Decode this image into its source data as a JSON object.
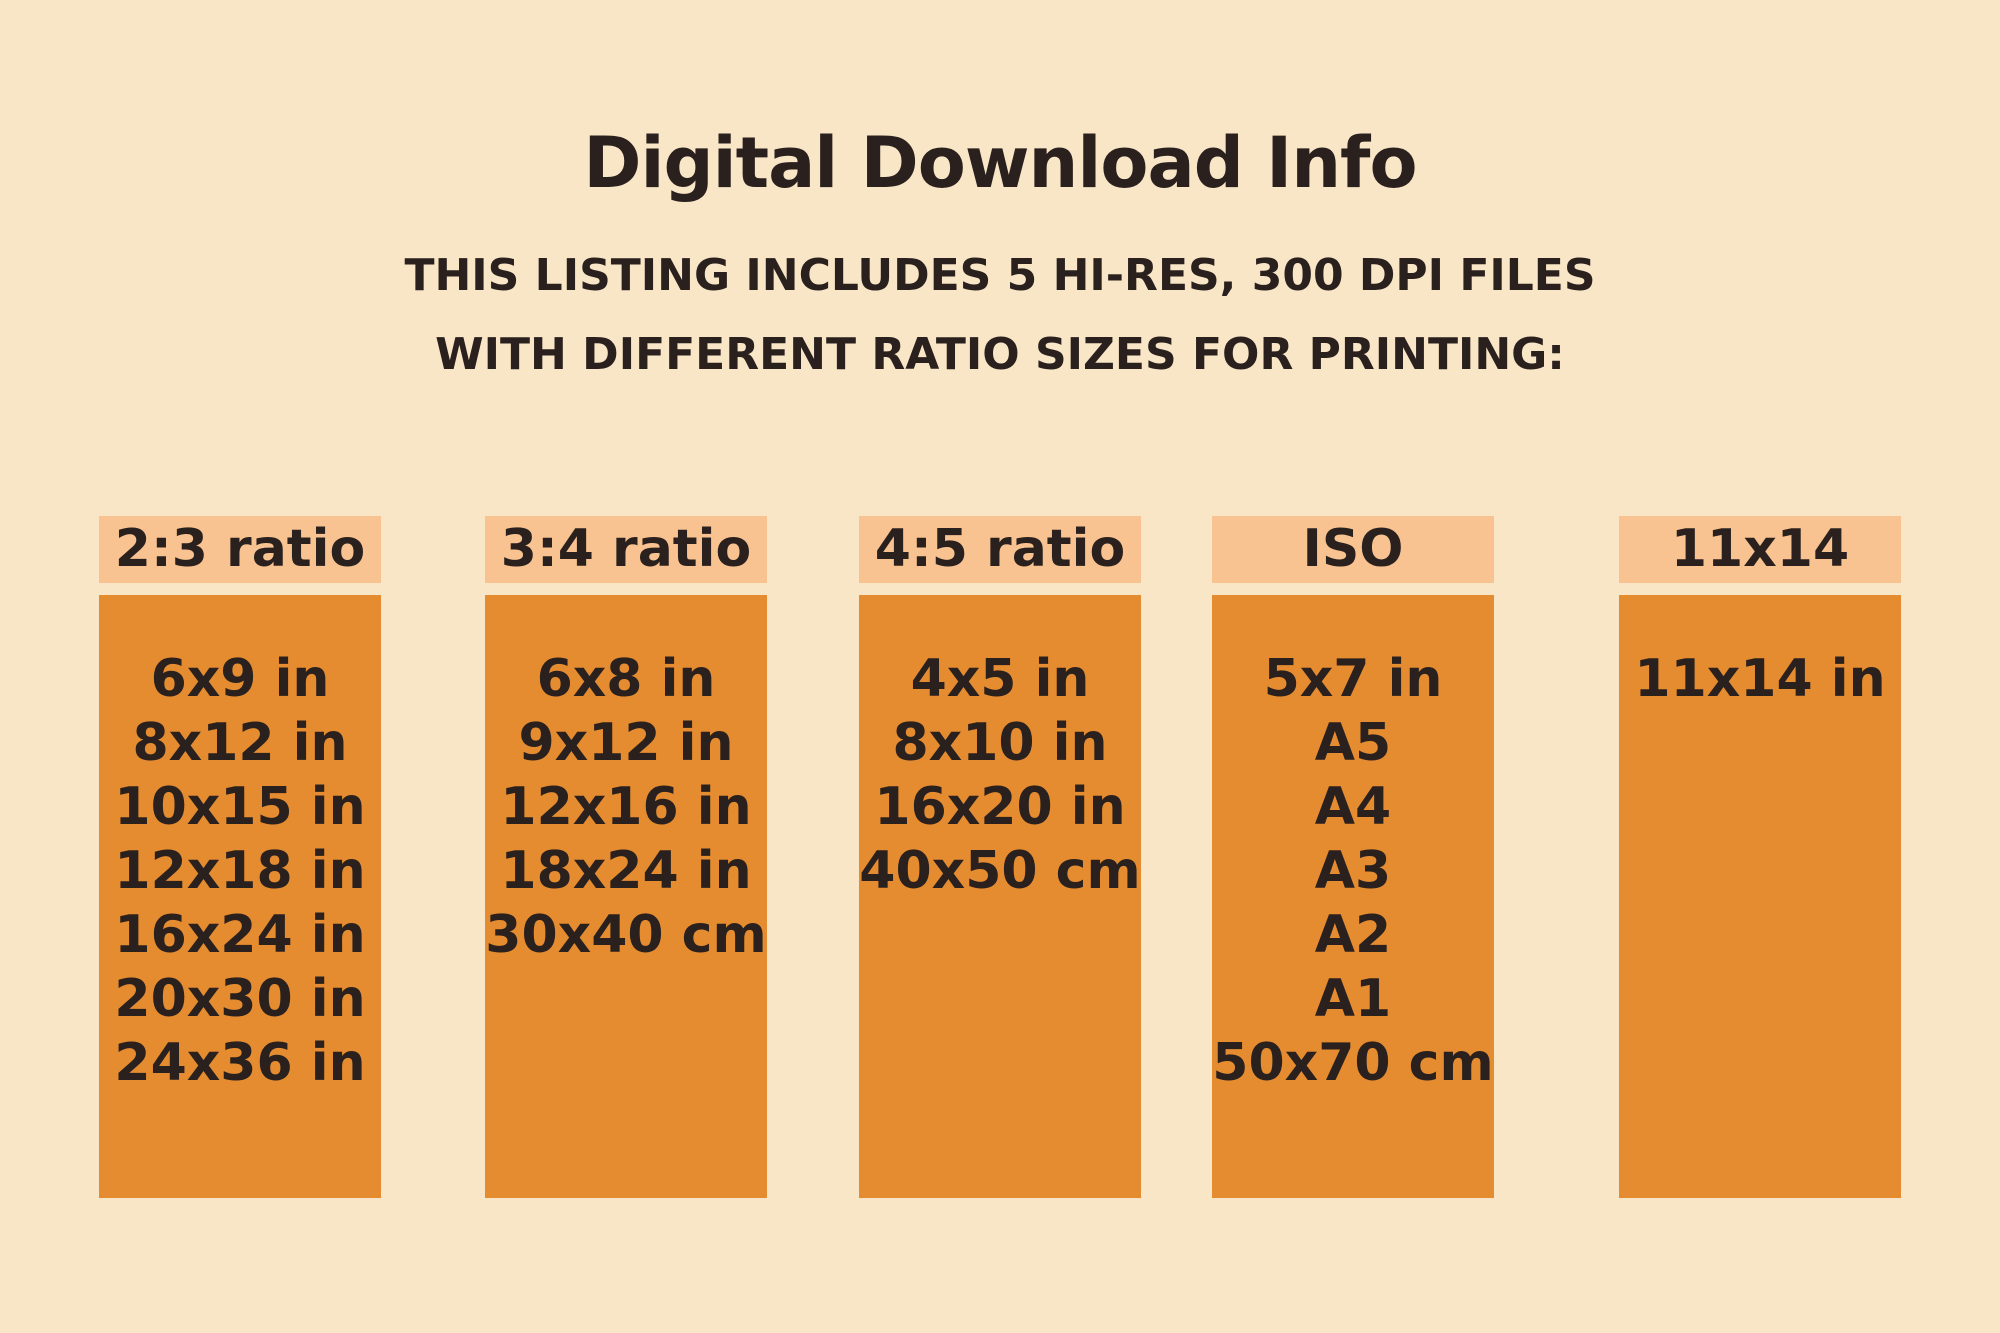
{
  "title": "Digital Download Info",
  "subtitle": [
    "THIS LISTING INCLUDES 5 HI-RES, 300 DPI FILES",
    "WITH DIFFERENT RATIO SIZES FOR PRINTING:"
  ],
  "columns": [
    {
      "header": "2:3 ratio",
      "sizes": [
        "6x9 in",
        "8x12 in",
        "10x15 in",
        "12x18 in",
        "16x24 in",
        "20x30 in",
        "24x36 in"
      ]
    },
    {
      "header": "3:4 ratio",
      "sizes": [
        "6x8 in",
        "9x12 in",
        "12x16 in",
        "18x24 in",
        "30x40 cm"
      ]
    },
    {
      "header": "4:5 ratio",
      "sizes": [
        "4x5 in",
        "8x10 in",
        "16x20 in",
        "40x50 cm"
      ]
    },
    {
      "header": "ISO",
      "sizes": [
        "5x7 in",
        "A5",
        "A4",
        "A3",
        "A2",
        "A1",
        "50x70 cm"
      ]
    },
    {
      "header": "11x14",
      "sizes": [
        "11x14 in"
      ]
    }
  ],
  "colors": {
    "background": "#f9e6c7",
    "header_fill": "#f9c391",
    "body_fill": "#e68c30",
    "text": "#2a211e"
  }
}
